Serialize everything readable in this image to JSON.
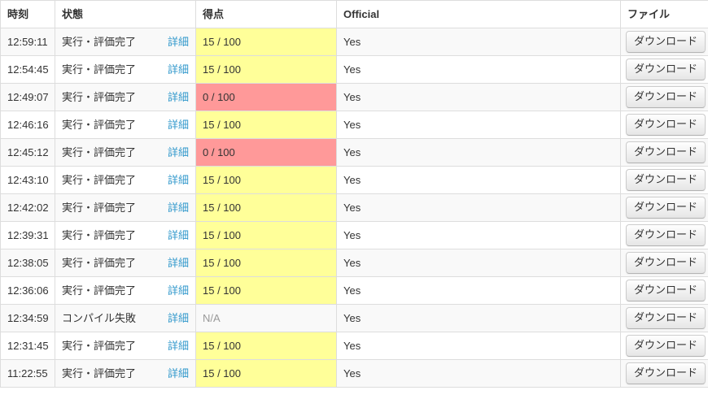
{
  "colors": {
    "link": "#3399cc",
    "border": "#dddddd",
    "stripe": "#f9f9f9",
    "score_partial_bg": "#ffff99",
    "score_zero_bg": "#ff9999",
    "text": "#333333",
    "muted_text": "#999999"
  },
  "table": {
    "columns": [
      {
        "key": "time",
        "label": "時刻"
      },
      {
        "key": "status",
        "label": "状態"
      },
      {
        "key": "score",
        "label": "得点"
      },
      {
        "key": "official",
        "label": "Official"
      },
      {
        "key": "file",
        "label": "ファイル"
      }
    ],
    "detail_label": "詳細",
    "download_label": "ダウンロード",
    "rows": [
      {
        "time": "12:59:11",
        "status": "実行・評価完了",
        "score": "15 / 100",
        "score_state": "partial",
        "official": "Yes"
      },
      {
        "time": "12:54:45",
        "status": "実行・評価完了",
        "score": "15 / 100",
        "score_state": "partial",
        "official": "Yes"
      },
      {
        "time": "12:49:07",
        "status": "実行・評価完了",
        "score": "0 / 100",
        "score_state": "zero",
        "official": "Yes"
      },
      {
        "time": "12:46:16",
        "status": "実行・評価完了",
        "score": "15 / 100",
        "score_state": "partial",
        "official": "Yes"
      },
      {
        "time": "12:45:12",
        "status": "実行・評価完了",
        "score": "0 / 100",
        "score_state": "zero",
        "official": "Yes"
      },
      {
        "time": "12:43:10",
        "status": "実行・評価完了",
        "score": "15 / 100",
        "score_state": "partial",
        "official": "Yes"
      },
      {
        "time": "12:42:02",
        "status": "実行・評価完了",
        "score": "15 / 100",
        "score_state": "partial",
        "official": "Yes"
      },
      {
        "time": "12:39:31",
        "status": "実行・評価完了",
        "score": "15 / 100",
        "score_state": "partial",
        "official": "Yes"
      },
      {
        "time": "12:38:05",
        "status": "実行・評価完了",
        "score": "15 / 100",
        "score_state": "partial",
        "official": "Yes"
      },
      {
        "time": "12:36:06",
        "status": "実行・評価完了",
        "score": "15 / 100",
        "score_state": "partial",
        "official": "Yes"
      },
      {
        "time": "12:34:59",
        "status": "コンパイル失敗",
        "score": "N/A",
        "score_state": "na",
        "official": "Yes"
      },
      {
        "time": "12:31:45",
        "status": "実行・評価完了",
        "score": "15 / 100",
        "score_state": "partial",
        "official": "Yes"
      },
      {
        "time": "11:22:55",
        "status": "実行・評価完了",
        "score": "15 / 100",
        "score_state": "partial",
        "official": "Yes"
      }
    ]
  }
}
